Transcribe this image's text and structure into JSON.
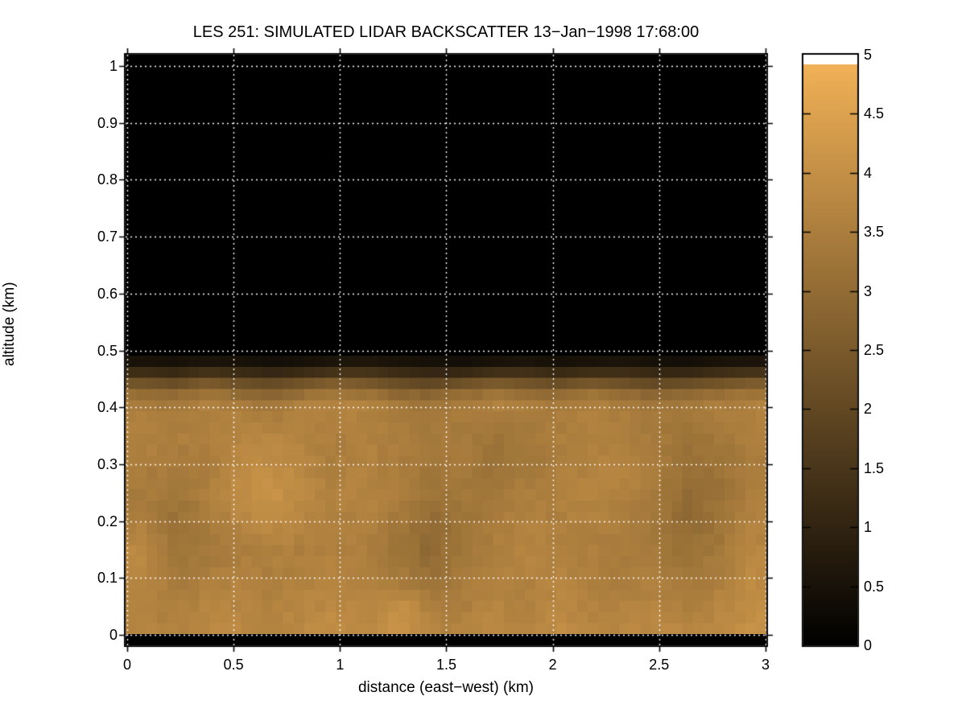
{
  "figure": {
    "background": "#ffffff",
    "axis_color": "#000000",
    "grid_color": "#ffffff"
  },
  "chart_data": {
    "type": "heatmap",
    "title": "LES 251: SIMULATED LIDAR BACKSCATTER 13−Jan−1998 17:68:00",
    "xlabel": "distance (east−west) (km)",
    "ylabel": "altitude (km)",
    "xlim": [
      0,
      3
    ],
    "ylim": [
      0,
      1
    ],
    "clim": [
      0,
      5
    ],
    "grid_on": true,
    "grid_style": "white dotted",
    "x_tick_labels": [
      "0",
      "0.5",
      "1",
      "1.5",
      "2",
      "2.5",
      "3"
    ],
    "x_tick_values": [
      0,
      0.5,
      1,
      1.5,
      2,
      2.5,
      3
    ],
    "y_tick_labels": [
      "0",
      "0.1",
      "0.2",
      "0.3",
      "0.4",
      "0.5",
      "0.6",
      "0.7",
      "0.8",
      "0.9",
      "1"
    ],
    "y_tick_values": [
      0,
      0.1,
      0.2,
      0.3,
      0.4,
      0.5,
      0.6,
      0.7,
      0.8,
      0.9,
      1
    ],
    "colorbar": {
      "tick_labels": [
        "0",
        "0.5",
        "1",
        "1.5",
        "2",
        "2.5",
        "3",
        "3.5",
        "4",
        "4.5",
        "5"
      ],
      "tick_values": [
        0,
        0.5,
        1,
        1.5,
        2,
        2.5,
        3,
        3.5,
        4,
        4.5,
        5
      ],
      "min": 0,
      "max": 5,
      "colormap": "copper-like, black at 0 rising to bright copper, white cap at top",
      "colormap_top_color": "#f5b458",
      "white_cap_color": "#ffffff",
      "white_cap_above": 4.92
    },
    "field_description": {
      "clear_air_above_km": 0.48,
      "cloud_top_transition_km": [
        0.42,
        0.48
      ],
      "surface_black_strip_below_km": 0.005,
      "noise_amplitude": 0.18,
      "resolution": {
        "columns": 61,
        "rows": 53
      }
    },
    "grid": {
      "x_km": [
        0.075,
        0.225,
        0.375,
        0.525,
        0.675,
        0.825,
        0.975,
        1.125,
        1.275,
        1.425,
        1.575,
        1.725,
        1.875,
        2.025,
        2.175,
        2.325,
        2.475,
        2.625,
        2.775,
        2.925
      ],
      "altitude_km": [
        0.5,
        0.47,
        0.445,
        0.42,
        0.4,
        0.35,
        0.3,
        0.25,
        0.2,
        0.15,
        0.1,
        0.05,
        0.01
      ],
      "values": [
        [
          0,
          0,
          0,
          0,
          0,
          0,
          0,
          0,
          0,
          0,
          0,
          0,
          0,
          0,
          0,
          0,
          0,
          0,
          0,
          0
        ],
        [
          0.8,
          0.7,
          0.9,
          0.8,
          0.6,
          0.7,
          0.9,
          1.0,
          0.8,
          0.7,
          0.6,
          0.8,
          0.9,
          0.7,
          0.8,
          0.9,
          0.7,
          0.6,
          0.8,
          0.9
        ],
        [
          2.2,
          2.0,
          2.4,
          2.1,
          1.9,
          2.2,
          2.5,
          2.3,
          2.0,
          1.8,
          2.1,
          2.4,
          2.2,
          2.0,
          2.3,
          2.1,
          1.9,
          2.0,
          2.2,
          2.4
        ],
        [
          3.3,
          3.1,
          3.4,
          3.2,
          3.0,
          3.3,
          3.5,
          3.4,
          3.1,
          3.0,
          3.2,
          3.4,
          3.3,
          3.1,
          3.4,
          3.2,
          3.0,
          3.1,
          3.3,
          3.4
        ],
        [
          3.6,
          3.5,
          3.7,
          3.6,
          3.4,
          3.7,
          3.8,
          3.7,
          3.5,
          3.4,
          3.6,
          3.7,
          3.6,
          3.5,
          3.7,
          3.6,
          3.4,
          3.5,
          3.6,
          3.7
        ],
        [
          3.7,
          3.6,
          3.6,
          3.8,
          3.9,
          3.7,
          3.6,
          3.7,
          3.6,
          3.4,
          3.5,
          3.3,
          3.4,
          3.6,
          3.7,
          3.6,
          3.5,
          3.3,
          3.4,
          3.6
        ],
        [
          3.6,
          3.5,
          3.6,
          3.9,
          4.0,
          3.8,
          3.6,
          3.7,
          3.5,
          3.4,
          3.5,
          3.2,
          3.4,
          3.6,
          3.7,
          3.8,
          3.6,
          3.2,
          3.3,
          3.5
        ],
        [
          3.5,
          3.4,
          3.6,
          4.0,
          4.2,
          3.9,
          3.7,
          3.8,
          3.6,
          3.3,
          3.4,
          3.4,
          3.6,
          3.7,
          3.8,
          3.7,
          3.5,
          3.1,
          3.2,
          3.6
        ],
        [
          3.6,
          3.2,
          3.5,
          3.8,
          4.0,
          3.8,
          3.6,
          3.7,
          3.4,
          3.1,
          3.3,
          3.5,
          3.7,
          3.6,
          3.7,
          3.6,
          3.4,
          3.0,
          3.3,
          3.7
        ],
        [
          3.9,
          3.3,
          3.4,
          3.6,
          3.7,
          3.6,
          3.7,
          3.6,
          3.3,
          3.0,
          3.4,
          3.6,
          3.8,
          3.7,
          3.6,
          3.5,
          3.5,
          3.2,
          3.4,
          3.8
        ],
        [
          3.8,
          3.5,
          3.6,
          3.7,
          3.6,
          3.7,
          3.8,
          3.7,
          3.5,
          3.2,
          3.5,
          3.7,
          3.7,
          3.8,
          3.6,
          3.6,
          3.6,
          3.4,
          3.6,
          3.9
        ],
        [
          3.7,
          3.6,
          3.8,
          3.8,
          3.7,
          3.8,
          3.9,
          3.8,
          4.1,
          3.6,
          3.6,
          3.8,
          3.6,
          3.9,
          3.7,
          3.7,
          3.8,
          3.6,
          3.8,
          4.0
        ],
        [
          3.8,
          3.7,
          3.9,
          3.9,
          3.8,
          3.9,
          4.0,
          3.9,
          4.3,
          3.8,
          3.7,
          3.9,
          3.7,
          4.0,
          3.8,
          3.8,
          3.9,
          3.8,
          3.9,
          4.1
        ]
      ]
    }
  }
}
